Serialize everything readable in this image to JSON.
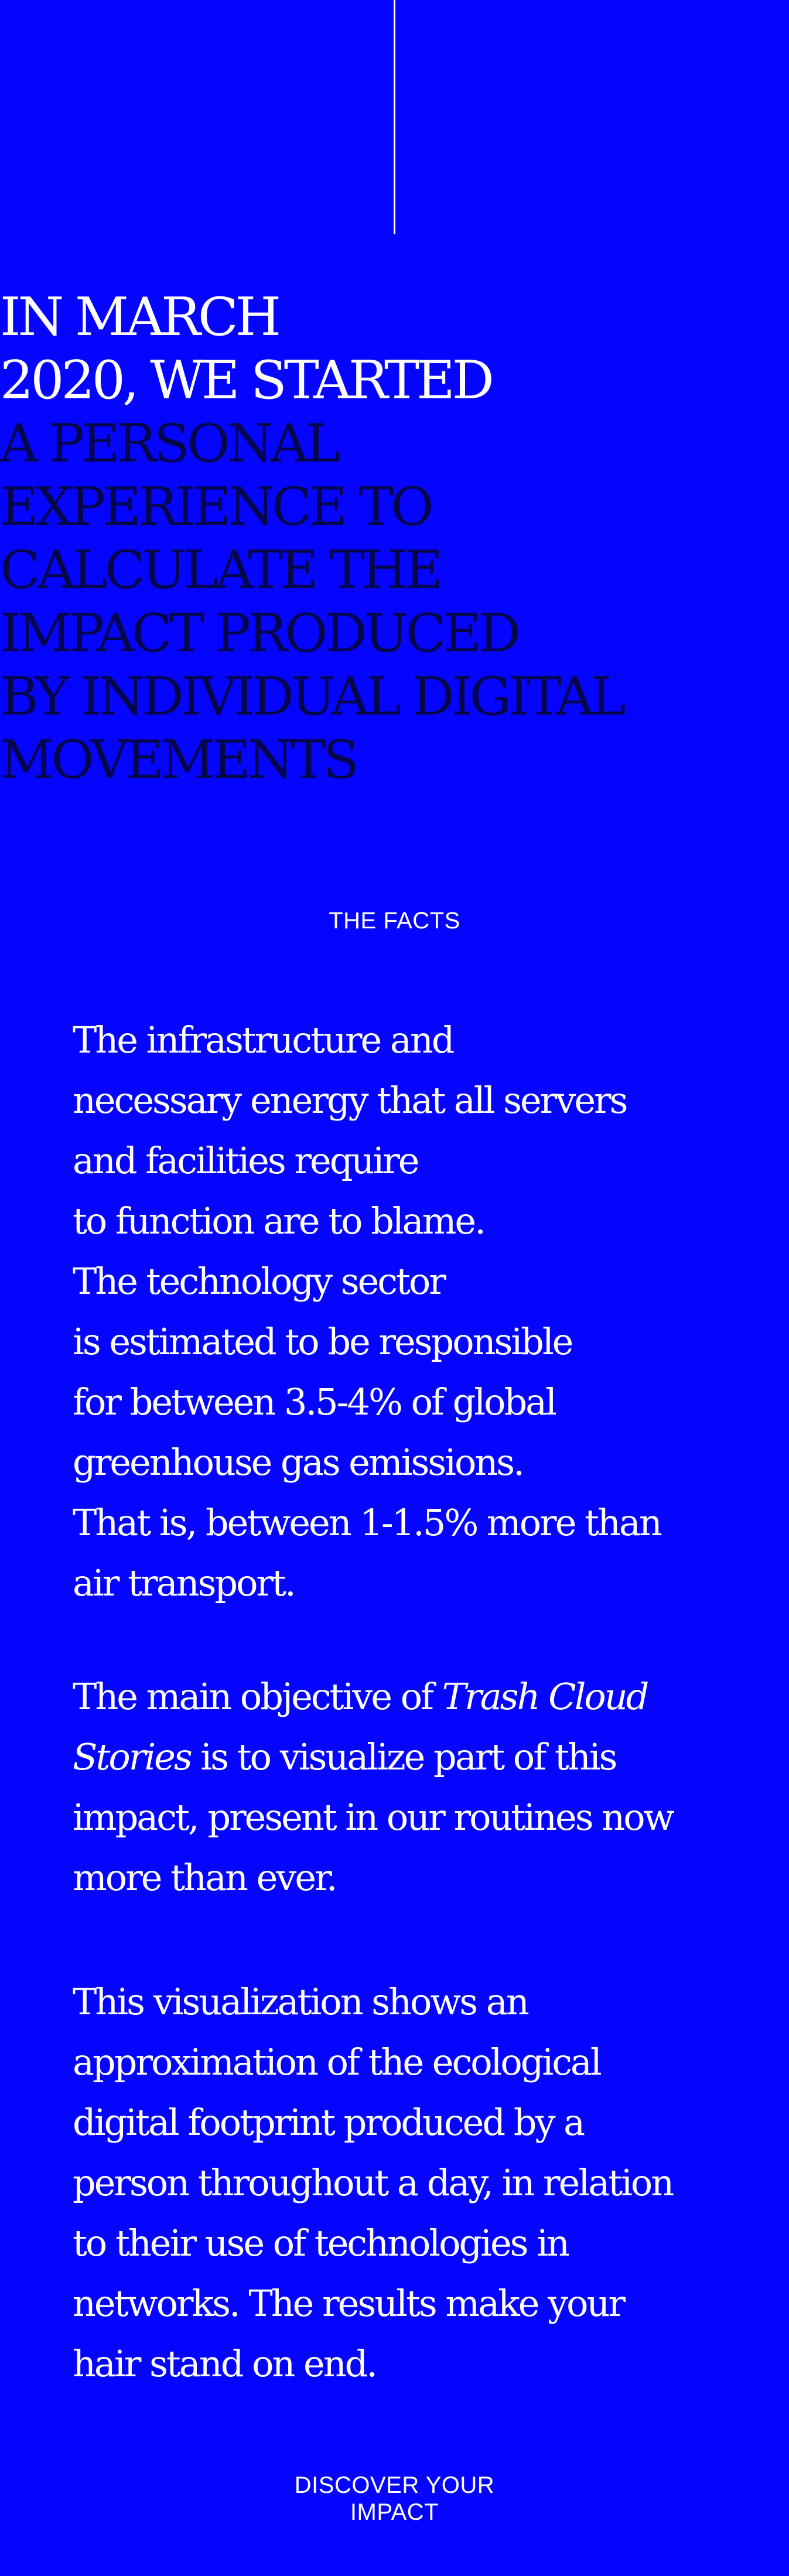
{
  "headline": {
    "lines": [
      "IN MARCH",
      "2020, WE STARTED",
      "A PERSONAL",
      "EXPERIENCE TO",
      "CALCULATE THE",
      "IMPACT PRODUCED",
      "BY INDIVIDUAL DIGITAL",
      "MOVEMENTS"
    ]
  },
  "facts": {
    "label": "THE FACTS",
    "paragraph1": [
      "The infrastructure and",
      "necessary energy that all servers",
      "and facilities require",
      "to function are to blame.",
      "The technology sector",
      "is estimated to be responsible",
      "for between 3.5-4% of global",
      "greenhouse gas emissions.",
      "That is, between 1-1.5% more than",
      "air transport."
    ],
    "paragraph2": {
      "line1_prefix": "The main objective of ",
      "line1_italic": "Trash Cloud",
      "line2_italic": "Stories",
      "line2_suffix": " is to visualize part of this",
      "line3": "impact, present in our routines now",
      "line4": "more than ever."
    },
    "paragraph3": [
      "This visualization shows an",
      "approximation of the ecological",
      "digital footprint produced by a",
      "person throughout a day, in relation",
      "to their use of technologies in",
      "networks. The results make your",
      "hair stand on end."
    ]
  },
  "cta": {
    "line1": "DISCOVER YOUR",
    "line2": "IMPACT"
  },
  "colors": {
    "background": "#0505ff",
    "text": "#ffffff",
    "headline_dark": "#06064a"
  }
}
